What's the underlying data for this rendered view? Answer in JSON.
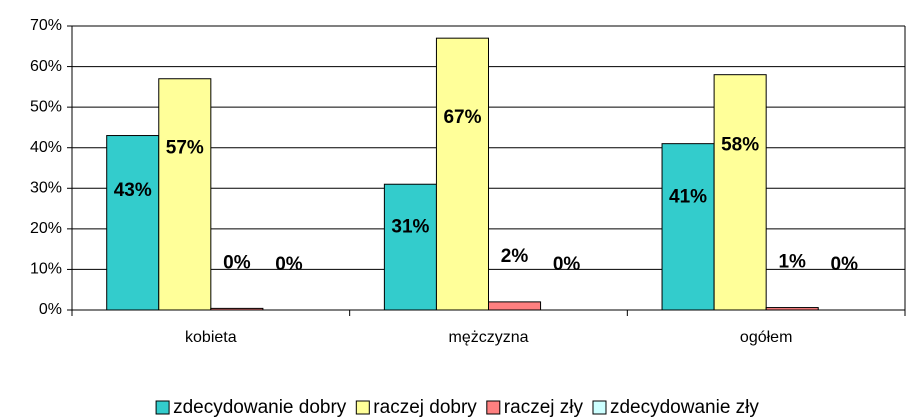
{
  "chart_data": {
    "type": "bar",
    "categories": [
      "kobieta",
      "mężczyzna",
      "ogółem"
    ],
    "series": [
      {
        "name": "zdecydowanie dobry",
        "color": "#33cccc",
        "values": [
          43,
          31,
          41
        ],
        "value_labels": [
          "43%",
          "31%",
          "41%"
        ]
      },
      {
        "name": "raczej dobry",
        "color": "#ffff99",
        "values": [
          57,
          67,
          58
        ],
        "value_labels": [
          "57%",
          "67%",
          "58%"
        ]
      },
      {
        "name": "raczej zły",
        "color": "#ff8080",
        "values": [
          0.4,
          2,
          0.6
        ],
        "value_labels": [
          "0%",
          "2%",
          "1%"
        ]
      },
      {
        "name": "zdecydowanie zły",
        "color": "#ccffff",
        "values": [
          0,
          0,
          0
        ],
        "value_labels": [
          "0%",
          "0%",
          "0%"
        ]
      }
    ],
    "ylim": [
      0,
      70
    ],
    "yticks": [
      {
        "value": 0,
        "label": "0%"
      },
      {
        "value": 10,
        "label": "10%"
      },
      {
        "value": 20,
        "label": "20%"
      },
      {
        "value": 30,
        "label": "30%"
      },
      {
        "value": 40,
        "label": "40%"
      },
      {
        "value": 50,
        "label": "50%"
      },
      {
        "value": 60,
        "label": "60%"
      },
      {
        "value": 70,
        "label": "70%"
      }
    ],
    "grid": true,
    "legend": "bottom"
  }
}
